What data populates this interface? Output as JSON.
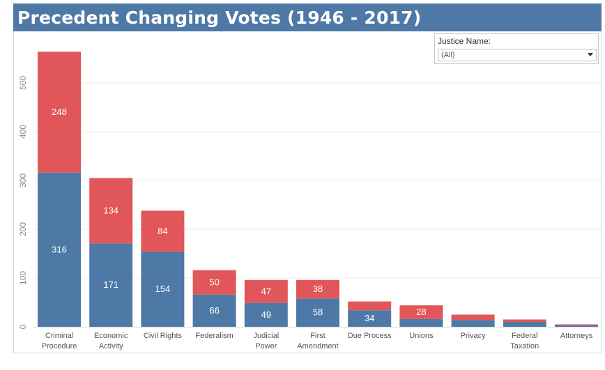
{
  "header": {
    "title": "Precedent Changing Votes (1946 - 2017)"
  },
  "filter": {
    "label": "Justice Name:",
    "value": "(All)"
  },
  "colors": {
    "title_bg": "#4e79a7",
    "blue": "#4e79a7",
    "red": "#e15759"
  },
  "chart_data": {
    "type": "bar",
    "stacked": true,
    "categories": [
      [
        "Criminal",
        "Procedure"
      ],
      [
        "Economic",
        "Activity"
      ],
      [
        "Civil Rights"
      ],
      [
        "Federalism"
      ],
      [
        "Judicial",
        "Power"
      ],
      [
        "First",
        "Amendment"
      ],
      [
        "Due Process"
      ],
      [
        "Unions"
      ],
      [
        "Privacy"
      ],
      [
        "Federal",
        "Taxation"
      ],
      [
        "Attorneys"
      ]
    ],
    "series": [
      {
        "color": "#4e79a7",
        "values": [
          316,
          171,
          154,
          66,
          49,
          58,
          34,
          16,
          14,
          10,
          3
        ],
        "labels": [
          "316",
          "171",
          "154",
          "66",
          "49",
          "58",
          "34",
          "",
          "",
          "",
          ""
        ]
      },
      {
        "color": "#e15759",
        "values": [
          248,
          134,
          84,
          50,
          47,
          38,
          18,
          28,
          11,
          5,
          2
        ],
        "labels": [
          "248",
          "134",
          "84",
          "50",
          "47",
          "38",
          "",
          "28",
          "",
          "",
          ""
        ]
      }
    ],
    "yticks": [
      0,
      100,
      200,
      300,
      400,
      500
    ],
    "ylim": [
      0,
      600
    ],
    "grid": true
  }
}
